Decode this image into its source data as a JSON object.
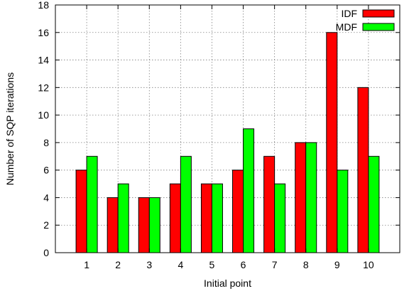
{
  "chart_data": {
    "type": "bar",
    "title": "",
    "xlabel": "Initial point",
    "ylabel": "Number of SQP iterations",
    "categories": [
      "1",
      "2",
      "3",
      "4",
      "5",
      "6",
      "7",
      "8",
      "9",
      "10"
    ],
    "series": [
      {
        "name": "IDF",
        "color": "#ff0000",
        "values": [
          6,
          4,
          4,
          5,
          5,
          6,
          7,
          8,
          16,
          12
        ]
      },
      {
        "name": "MDF",
        "color": "#00ff00",
        "values": [
          7,
          5,
          4,
          7,
          5,
          9,
          5,
          8,
          6,
          7
        ]
      }
    ],
    "ylim": [
      0,
      18
    ],
    "yticks": [
      "0",
      "2",
      "4",
      "6",
      "8",
      "10",
      "12",
      "14",
      "16",
      "18"
    ],
    "grid": true,
    "legend_position": "top-right"
  }
}
